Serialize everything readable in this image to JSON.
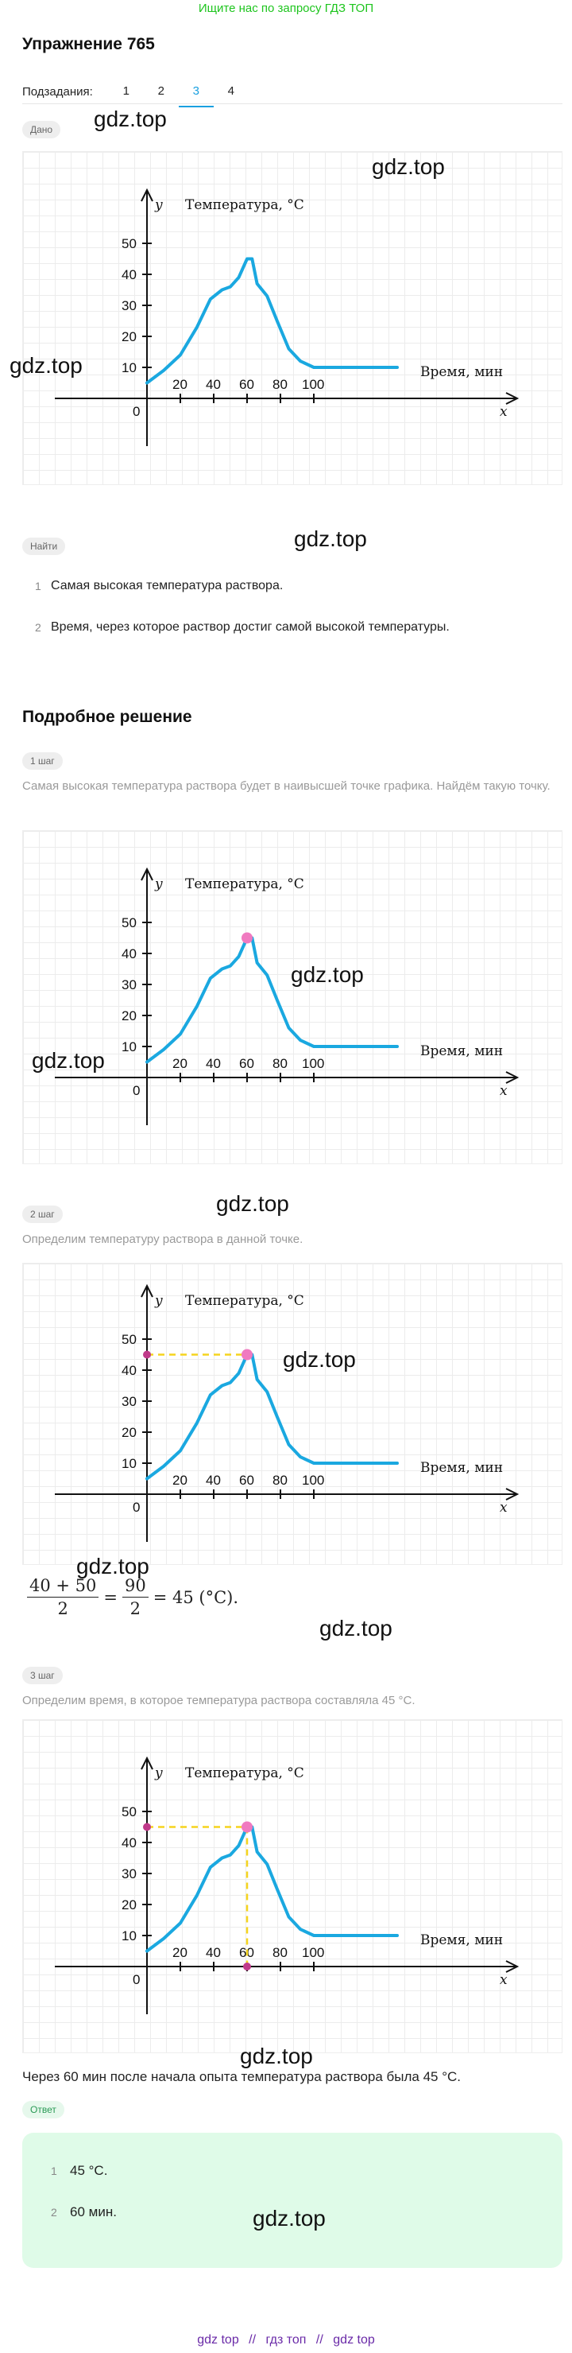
{
  "banner": "Ищите нас по запросу ГДЗ ТОП",
  "exercise_title": "Упражнение 765",
  "subtasks": {
    "label": "Подзадания:",
    "tabs": [
      "1",
      "2",
      "3",
      "4"
    ],
    "active": "3"
  },
  "given_badge": "Дано",
  "find_badge": "Найти",
  "find_items": [
    "Самая высокая температура раствора.",
    "Время, через которое раствор достиг самой высокой температуры."
  ],
  "solution_title": "Подробное решение",
  "steps": [
    {
      "badge": "1 шаг",
      "text": "Самая высокая температура раствора будет в наивысшей точке графика. Найдём такую точку."
    },
    {
      "badge": "2 шаг",
      "text": "Определим температуру раствора в данной точке."
    },
    {
      "badge": "3 шаг",
      "text": "Определим время, в которое температура раствора составляла 45 °C."
    }
  ],
  "formula": {
    "num1": "40 + 50",
    "den1": "2",
    "num2": "90",
    "den2": "2",
    "result": "= 45 (°C)."
  },
  "conclusion": "Через 60 мин после начала опыта температура раствора была 45 °C.",
  "answer_badge": "Ответ",
  "answers": [
    "45 °C.",
    "60 мин."
  ],
  "watermark": "gdz.top",
  "footer": [
    "gdz top",
    "//",
    "гдз топ",
    "//",
    "gdz top"
  ],
  "chart_data": {
    "type": "line",
    "ylabel": "Температура, °C",
    "xlabel": "Время, мин",
    "x_axis_name": "x",
    "y_axis_name": "y",
    "origin_label": "0",
    "x_ticks": [
      "20",
      "40",
      "60",
      "80",
      "100"
    ],
    "y_ticks": [
      "10",
      "20",
      "30",
      "40",
      "50"
    ],
    "series": [
      {
        "x": [
          0,
          10,
          20,
          30,
          38,
          45,
          50,
          55,
          60,
          63,
          66,
          72,
          78,
          85,
          92,
          100,
          110,
          130,
          150
        ],
        "y": [
          5,
          9,
          14,
          23,
          32,
          35,
          36,
          39,
          45,
          45,
          37,
          33,
          25,
          16,
          12,
          10,
          10,
          10,
          10
        ]
      }
    ],
    "max_point": {
      "x": 60,
      "y": 45
    },
    "colors": {
      "curve": "#1aa8e0",
      "point": "#f07ac0",
      "guide": "#f5d41e",
      "axis": "#111111"
    }
  }
}
